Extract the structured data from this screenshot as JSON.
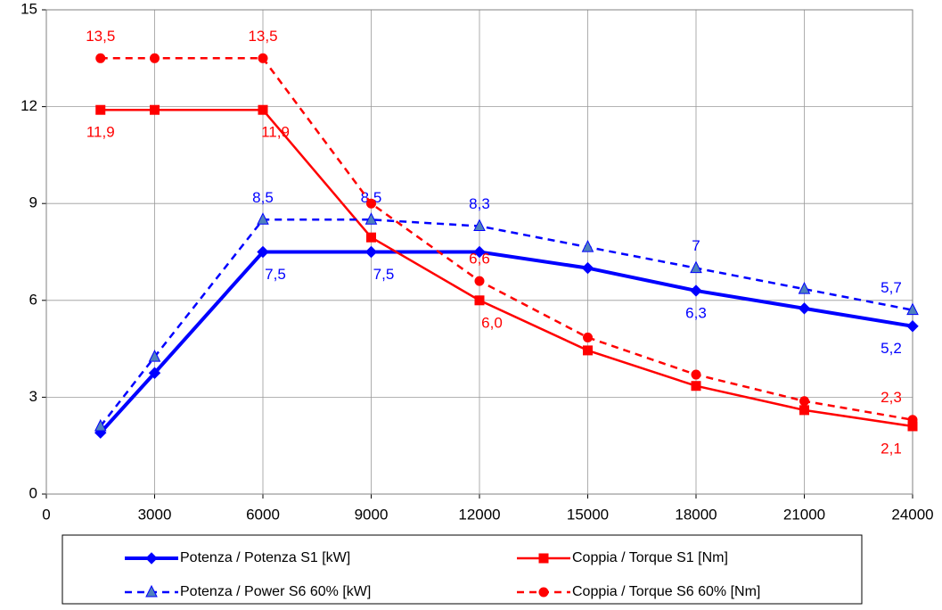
{
  "chart_data": {
    "type": "line",
    "x": [
      1500,
      3000,
      6000,
      9000,
      12000,
      15000,
      18000,
      21000,
      24000
    ],
    "xlim": [
      0,
      24000
    ],
    "xticks": [
      0,
      3000,
      6000,
      9000,
      12000,
      15000,
      18000,
      21000,
      24000
    ],
    "ylim": [
      0,
      15
    ],
    "yticks": [
      0,
      3,
      6,
      9,
      12,
      15
    ],
    "grid": true,
    "series": [
      {
        "name": "Potenza / Potenza S1 [kW]",
        "color": "#0000ff",
        "line_style": "solid",
        "line_width": 4,
        "marker": "diamond",
        "values": [
          1.9,
          3.75,
          7.5,
          7.5,
          7.5,
          7.0,
          6.3,
          5.75,
          5.2
        ],
        "value_labels": [
          null,
          null,
          "7,5",
          "7,5",
          null,
          null,
          "6,3",
          null,
          "5,2"
        ],
        "label_side": "below"
      },
      {
        "name": "Coppia / Torque S1 [Nm]",
        "color": "#ff0000",
        "line_style": "solid",
        "line_width": 2.5,
        "marker": "square",
        "values": [
          11.9,
          11.9,
          11.9,
          7.95,
          6.0,
          4.45,
          3.35,
          2.6,
          2.1
        ],
        "value_labels": [
          "11,9",
          null,
          "11,9",
          null,
          "6,0",
          null,
          null,
          null,
          "2,1"
        ],
        "label_side": "below"
      },
      {
        "name": "Potenza / Power S6 60% [kW]",
        "color": "#0000ff",
        "line_style": "dashed",
        "line_width": 2.5,
        "marker": "triangle",
        "values": [
          2.1,
          4.25,
          8.5,
          8.5,
          8.3,
          7.65,
          7,
          6.35,
          5.7
        ],
        "value_labels": [
          null,
          null,
          "8,5",
          "8,5",
          "8,3",
          null,
          "7",
          null,
          "5,7"
        ],
        "label_side": "above"
      },
      {
        "name": "Coppia / Torque S6 60% [Nm]",
        "color": "#ff0000",
        "line_style": "dashed",
        "line_width": 2.5,
        "marker": "circle",
        "values": [
          13.5,
          13.5,
          13.5,
          9.0,
          6.6,
          4.85,
          3.7,
          2.88,
          2.3
        ],
        "value_labels": [
          "13,5",
          null,
          "13,5",
          null,
          "6,6",
          null,
          null,
          null,
          "2,3"
        ],
        "label_side": "above"
      }
    ]
  }
}
